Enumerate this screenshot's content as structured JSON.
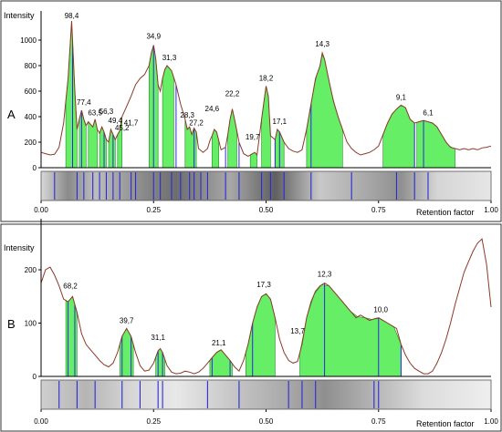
{
  "chart_data": [
    {
      "panel": "A",
      "type": "area",
      "ylabel": "Intensity",
      "xlabel": "Retention factor",
      "xlim": [
        0,
        1
      ],
      "ylim": [
        0,
        1100
      ],
      "yticks": [
        0,
        200,
        400,
        600,
        800,
        1000
      ],
      "xticks": [
        0,
        0.25,
        0.5,
        0.75,
        1
      ],
      "xtick_labels": [
        "0.00",
        "0.25",
        "0.50",
        "0.75",
        "1.00"
      ],
      "trace_color": "#8b3a2a",
      "fill_color": "#66ee66",
      "band_color": "#2b2bd6",
      "trace": [
        [
          0.0,
          120
        ],
        [
          0.01,
          110
        ],
        [
          0.02,
          100
        ],
        [
          0.03,
          105
        ],
        [
          0.04,
          160
        ],
        [
          0.05,
          350
        ],
        [
          0.06,
          700
        ],
        [
          0.068,
          1150
        ],
        [
          0.075,
          600
        ],
        [
          0.08,
          300
        ],
        [
          0.085,
          380
        ],
        [
          0.09,
          450
        ],
        [
          0.095,
          380
        ],
        [
          0.1,
          330
        ],
        [
          0.105,
          360
        ],
        [
          0.11,
          340
        ],
        [
          0.115,
          320
        ],
        [
          0.12,
          380
        ],
        [
          0.125,
          300
        ],
        [
          0.13,
          270
        ],
        [
          0.135,
          320
        ],
        [
          0.14,
          280
        ],
        [
          0.145,
          220
        ],
        [
          0.15,
          200
        ],
        [
          0.155,
          300
        ],
        [
          0.16,
          260
        ],
        [
          0.165,
          220
        ],
        [
          0.17,
          260
        ],
        [
          0.175,
          290
        ],
        [
          0.18,
          400
        ],
        [
          0.19,
          480
        ],
        [
          0.2,
          560
        ],
        [
          0.21,
          650
        ],
        [
          0.22,
          700
        ],
        [
          0.23,
          730
        ],
        [
          0.24,
          800
        ],
        [
          0.245,
          900
        ],
        [
          0.25,
          960
        ],
        [
          0.255,
          850
        ],
        [
          0.26,
          650
        ],
        [
          0.265,
          600
        ],
        [
          0.27,
          700
        ],
        [
          0.275,
          770
        ],
        [
          0.28,
          800
        ],
        [
          0.29,
          760
        ],
        [
          0.3,
          650
        ],
        [
          0.31,
          500
        ],
        [
          0.32,
          380
        ],
        [
          0.325,
          300
        ],
        [
          0.33,
          320
        ],
        [
          0.335,
          260
        ],
        [
          0.34,
          310
        ],
        [
          0.345,
          280
        ],
        [
          0.35,
          150
        ],
        [
          0.36,
          120
        ],
        [
          0.37,
          150
        ],
        [
          0.375,
          210
        ],
        [
          0.38,
          250
        ],
        [
          0.385,
          300
        ],
        [
          0.39,
          280
        ],
        [
          0.4,
          140
        ],
        [
          0.41,
          160
        ],
        [
          0.415,
          260
        ],
        [
          0.42,
          380
        ],
        [
          0.425,
          460
        ],
        [
          0.43,
          380
        ],
        [
          0.44,
          200
        ],
        [
          0.45,
          110
        ],
        [
          0.46,
          90
        ],
        [
          0.47,
          110
        ],
        [
          0.475,
          120
        ],
        [
          0.48,
          100
        ],
        [
          0.49,
          380
        ],
        [
          0.5,
          640
        ],
        [
          0.505,
          560
        ],
        [
          0.51,
          250
        ],
        [
          0.52,
          220
        ],
        [
          0.525,
          300
        ],
        [
          0.53,
          280
        ],
        [
          0.54,
          200
        ],
        [
          0.55,
          150
        ],
        [
          0.56,
          130
        ],
        [
          0.57,
          120
        ],
        [
          0.58,
          140
        ],
        [
          0.59,
          300
        ],
        [
          0.6,
          500
        ],
        [
          0.61,
          700
        ],
        [
          0.62,
          800
        ],
        [
          0.625,
          900
        ],
        [
          0.63,
          850
        ],
        [
          0.64,
          680
        ],
        [
          0.65,
          520
        ],
        [
          0.66,
          400
        ],
        [
          0.67,
          300
        ],
        [
          0.68,
          200
        ],
        [
          0.69,
          150
        ],
        [
          0.7,
          120
        ],
        [
          0.71,
          100
        ],
        [
          0.72,
          110
        ],
        [
          0.73,
          120
        ],
        [
          0.74,
          140
        ],
        [
          0.75,
          170
        ],
        [
          0.76,
          260
        ],
        [
          0.77,
          350
        ],
        [
          0.78,
          420
        ],
        [
          0.79,
          460
        ],
        [
          0.8,
          490
        ],
        [
          0.81,
          470
        ],
        [
          0.82,
          380
        ],
        [
          0.83,
          350
        ],
        [
          0.84,
          360
        ],
        [
          0.85,
          370
        ],
        [
          0.86,
          360
        ],
        [
          0.87,
          350
        ],
        [
          0.88,
          320
        ],
        [
          0.89,
          260
        ],
        [
          0.9,
          200
        ],
        [
          0.91,
          160
        ],
        [
          0.92,
          150
        ],
        [
          0.93,
          140
        ],
        [
          0.94,
          150
        ],
        [
          0.95,
          140
        ],
        [
          0.96,
          150
        ],
        [
          0.97,
          140
        ],
        [
          0.98,
          155
        ],
        [
          0.99,
          160
        ],
        [
          1.0,
          170
        ]
      ],
      "fills": [
        [
          0.055,
          0.08
        ],
        [
          0.085,
          0.1
        ],
        [
          0.105,
          0.125
        ],
        [
          0.13,
          0.145
        ],
        [
          0.15,
          0.165
        ],
        [
          0.17,
          0.18
        ],
        [
          0.24,
          0.26
        ],
        [
          0.27,
          0.295
        ],
        [
          0.32,
          0.345
        ],
        [
          0.38,
          0.395
        ],
        [
          0.415,
          0.435
        ],
        [
          0.465,
          0.48
        ],
        [
          0.49,
          0.51
        ],
        [
          0.52,
          0.54
        ],
        [
          0.59,
          0.67
        ],
        [
          0.76,
          0.83
        ],
        [
          0.835,
          0.92
        ]
      ],
      "markers": [
        0.07,
        0.09,
        0.14,
        0.16,
        0.25,
        0.3,
        0.34,
        0.41,
        0.44,
        0.52,
        0.53,
        0.6,
        0.83,
        0.85
      ],
      "bands": [
        0.03,
        0.08,
        0.095,
        0.115,
        0.13,
        0.145,
        0.16,
        0.175,
        0.2,
        0.21,
        0.25,
        0.265,
        0.29,
        0.31,
        0.33,
        0.34,
        0.355,
        0.37,
        0.41,
        0.44,
        0.49,
        0.51,
        0.54,
        0.6,
        0.69,
        0.79,
        0.83,
        0.86
      ],
      "peak_labels": [
        {
          "text": "98,4",
          "x": 0.068,
          "y": 1150
        },
        {
          "text": "77,4",
          "x": 0.095,
          "y": 470
        },
        {
          "text": "63,5",
          "x": 0.12,
          "y": 390
        },
        {
          "text": "56,3",
          "x": 0.145,
          "y": 400
        },
        {
          "text": "49,4",
          "x": 0.165,
          "y": 330
        },
        {
          "text": "45,2",
          "x": 0.18,
          "y": 270
        },
        {
          "text": "41,7",
          "x": 0.2,
          "y": 310
        },
        {
          "text": "34,9",
          "x": 0.25,
          "y": 990
        },
        {
          "text": "31,3",
          "x": 0.285,
          "y": 820
        },
        {
          "text": "28,3",
          "x": 0.325,
          "y": 370
        },
        {
          "text": "27,2",
          "x": 0.345,
          "y": 310
        },
        {
          "text": "24,6",
          "x": 0.38,
          "y": 420
        },
        {
          "text": "22,2",
          "x": 0.425,
          "y": 540
        },
        {
          "text": "19,7",
          "x": 0.47,
          "y": 200
        },
        {
          "text": "18,2",
          "x": 0.5,
          "y": 660
        },
        {
          "text": "17,1",
          "x": 0.53,
          "y": 320
        },
        {
          "text": "14,3",
          "x": 0.625,
          "y": 930
        },
        {
          "text": "9,1",
          "x": 0.8,
          "y": 510
        },
        {
          "text": "6,1",
          "x": 0.86,
          "y": 390
        }
      ]
    },
    {
      "panel": "B",
      "type": "area",
      "ylabel": "Intensity",
      "xlabel": "Retention factor",
      "xlim": [
        0,
        1
      ],
      "ylim": [
        0,
        265
      ],
      "yticks": [
        0,
        100,
        200
      ],
      "xticks": [
        0,
        0.25,
        0.5,
        0.75,
        1
      ],
      "xtick_labels": [
        "0.00",
        "0.25",
        "0.50",
        "0.75",
        "1.00"
      ],
      "trace_color": "#8b3a2a",
      "fill_color": "#66ee66",
      "band_color": "#2b2bd6",
      "trace": [
        [
          0.0,
          175
        ],
        [
          0.01,
          200
        ],
        [
          0.02,
          205
        ],
        [
          0.03,
          190
        ],
        [
          0.04,
          170
        ],
        [
          0.05,
          145
        ],
        [
          0.06,
          140
        ],
        [
          0.065,
          145
        ],
        [
          0.07,
          150
        ],
        [
          0.08,
          120
        ],
        [
          0.09,
          80
        ],
        [
          0.1,
          60
        ],
        [
          0.11,
          50
        ],
        [
          0.12,
          40
        ],
        [
          0.13,
          30
        ],
        [
          0.14,
          22
        ],
        [
          0.15,
          18
        ],
        [
          0.16,
          25
        ],
        [
          0.17,
          45
        ],
        [
          0.18,
          75
        ],
        [
          0.19,
          90
        ],
        [
          0.2,
          75
        ],
        [
          0.21,
          45
        ],
        [
          0.22,
          20
        ],
        [
          0.23,
          10
        ],
        [
          0.24,
          12
        ],
        [
          0.25,
          25
        ],
        [
          0.26,
          48
        ],
        [
          0.265,
          52
        ],
        [
          0.27,
          45
        ],
        [
          0.28,
          20
        ],
        [
          0.29,
          8
        ],
        [
          0.3,
          5
        ],
        [
          0.31,
          6
        ],
        [
          0.32,
          10
        ],
        [
          0.33,
          8
        ],
        [
          0.34,
          5
        ],
        [
          0.35,
          8
        ],
        [
          0.36,
          15
        ],
        [
          0.37,
          25
        ],
        [
          0.38,
          35
        ],
        [
          0.39,
          45
        ],
        [
          0.4,
          50
        ],
        [
          0.41,
          40
        ],
        [
          0.42,
          30
        ],
        [
          0.43,
          18
        ],
        [
          0.44,
          10
        ],
        [
          0.45,
          30
        ],
        [
          0.46,
          60
        ],
        [
          0.47,
          100
        ],
        [
          0.48,
          130
        ],
        [
          0.49,
          150
        ],
        [
          0.5,
          155
        ],
        [
          0.51,
          145
        ],
        [
          0.52,
          110
        ],
        [
          0.53,
          70
        ],
        [
          0.54,
          45
        ],
        [
          0.55,
          30
        ],
        [
          0.56,
          25
        ],
        [
          0.57,
          28
        ],
        [
          0.58,
          60
        ],
        [
          0.59,
          110
        ],
        [
          0.6,
          140
        ],
        [
          0.61,
          160
        ],
        [
          0.62,
          170
        ],
        [
          0.63,
          175
        ],
        [
          0.64,
          170
        ],
        [
          0.65,
          160
        ],
        [
          0.66,
          150
        ],
        [
          0.67,
          140
        ],
        [
          0.68,
          130
        ],
        [
          0.69,
          120
        ],
        [
          0.7,
          110
        ],
        [
          0.71,
          115
        ],
        [
          0.72,
          110
        ],
        [
          0.73,
          105
        ],
        [
          0.74,
          108
        ],
        [
          0.75,
          110
        ],
        [
          0.76,
          105
        ],
        [
          0.77,
          100
        ],
        [
          0.78,
          95
        ],
        [
          0.79,
          90
        ],
        [
          0.8,
          60
        ],
        [
          0.81,
          40
        ],
        [
          0.82,
          25
        ],
        [
          0.83,
          15
        ],
        [
          0.84,
          10
        ],
        [
          0.85,
          5
        ],
        [
          0.86,
          5
        ],
        [
          0.87,
          10
        ],
        [
          0.88,
          25
        ],
        [
          0.89,
          45
        ],
        [
          0.9,
          70
        ],
        [
          0.91,
          100
        ],
        [
          0.92,
          135
        ],
        [
          0.93,
          165
        ],
        [
          0.94,
          195
        ],
        [
          0.95,
          215
        ],
        [
          0.96,
          235
        ],
        [
          0.97,
          250
        ],
        [
          0.98,
          258
        ],
        [
          0.99,
          210
        ],
        [
          1.0,
          130
        ]
      ],
      "fills": [
        [
          0.055,
          0.08
        ],
        [
          0.175,
          0.205
        ],
        [
          0.255,
          0.275
        ],
        [
          0.375,
          0.425
        ],
        [
          0.455,
          0.52
        ],
        [
          0.575,
          0.8
        ]
      ],
      "markers": [
        0.06,
        0.075,
        0.18,
        0.2,
        0.26,
        0.27,
        0.38,
        0.42,
        0.47,
        0.63,
        0.75,
        0.8
      ],
      "bands": [
        0.04,
        0.08,
        0.12,
        0.18,
        0.22,
        0.26,
        0.27,
        0.37,
        0.44,
        0.55,
        0.58,
        0.61,
        0.74,
        0.75
      ],
      "peak_labels": [
        {
          "text": "68,2",
          "x": 0.065,
          "y": 160
        },
        {
          "text": "39,7",
          "x": 0.19,
          "y": 95
        },
        {
          "text": "31,1",
          "x": 0.26,
          "y": 63
        },
        {
          "text": "21,1",
          "x": 0.395,
          "y": 53
        },
        {
          "text": "17,3",
          "x": 0.495,
          "y": 162
        },
        {
          "text": "13,7",
          "x": 0.57,
          "y": 75
        },
        {
          "text": "12,3",
          "x": 0.63,
          "y": 182
        },
        {
          "text": "10,0",
          "x": 0.755,
          "y": 115
        }
      ]
    }
  ]
}
